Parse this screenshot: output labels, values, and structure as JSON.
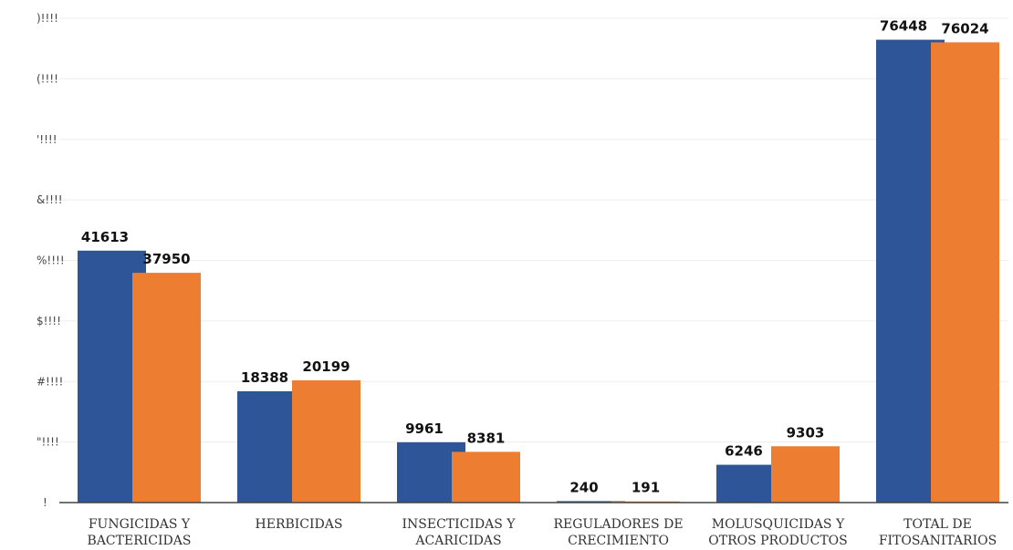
{
  "chart_data": {
    "type": "bar",
    "categories": [
      [
        "FUNGICIDAS Y",
        "BACTERICIDAS"
      ],
      [
        "HERBICIDAS"
      ],
      [
        "INSECTICIDAS Y",
        "ACARICIDAS"
      ],
      [
        "REGULADORES DE",
        "CRECIMIENTO"
      ],
      [
        "MOLUSQUICIDAS Y",
        "OTROS PRODUCTOS"
      ],
      [
        "TOTAL DE",
        "FITOSANITARIOS"
      ]
    ],
    "series": [
      {
        "color": "#2e5597",
        "values": [
          41613,
          18388,
          9961,
          240,
          6246,
          76448
        ]
      },
      {
        "color": "#ed7d31",
        "values": [
          37950,
          20199,
          8381,
          191,
          9303,
          76024
        ]
      }
    ],
    "y_ticks": [
      "!",
      "\"!!!!",
      "#!!!!",
      "$!!!!",
      "%!!!!",
      "&!!!!",
      "'!!!!",
      "(!!!!",
      ")!!!!"
    ],
    "y_tick_values": [
      0,
      10000,
      20000,
      30000,
      40000,
      50000,
      60000,
      70000,
      80000
    ],
    "ylim": [
      0,
      80000
    ],
    "grid": true,
    "legend": "none"
  }
}
